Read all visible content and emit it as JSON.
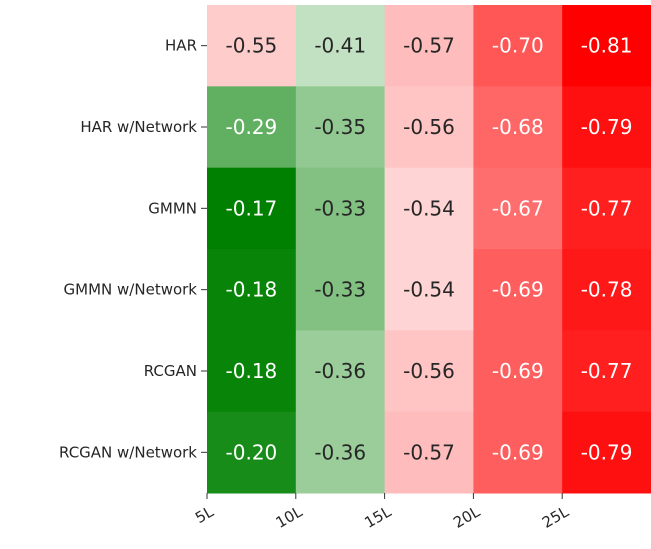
{
  "chart_data": {
    "type": "heatmap",
    "title": "",
    "xlabel": "",
    "ylabel": "",
    "rows": [
      "HAR",
      "HAR w/Network",
      "GMMN",
      "GMMN w/Network",
      "RCGAN",
      "RCGAN w/Network"
    ],
    "columns": [
      "5L",
      "10L",
      "15L",
      "20L",
      "25L"
    ],
    "values": [
      [
        -0.55,
        -0.41,
        -0.57,
        -0.7,
        -0.81
      ],
      [
        -0.29,
        -0.35,
        -0.56,
        -0.68,
        -0.79
      ],
      [
        -0.17,
        -0.33,
        -0.54,
        -0.67,
        -0.77
      ],
      [
        -0.18,
        -0.33,
        -0.54,
        -0.69,
        -0.78
      ],
      [
        -0.18,
        -0.36,
        -0.56,
        -0.69,
        -0.77
      ],
      [
        -0.2,
        -0.36,
        -0.57,
        -0.69,
        -0.79
      ]
    ],
    "value_labels": [
      [
        "-0.55",
        "-0.41",
        "-0.57",
        "-0.70",
        "-0.81"
      ],
      [
        "-0.29",
        "-0.35",
        "-0.56",
        "-0.68",
        "-0.79"
      ],
      [
        "-0.17",
        "-0.33",
        "-0.54",
        "-0.67",
        "-0.77"
      ],
      [
        "-0.18",
        "-0.33",
        "-0.54",
        "-0.69",
        "-0.78"
      ],
      [
        "-0.18",
        "-0.36",
        "-0.56",
        "-0.69",
        "-0.77"
      ],
      [
        "-0.20",
        "-0.36",
        "-0.57",
        "-0.69",
        "-0.79"
      ]
    ],
    "colormap": {
      "low_color": "#008000",
      "mid_color": "#ffffff",
      "high_color": "#ff0000",
      "low_value": -0.17,
      "mid_value": -0.485,
      "high_value": -0.81
    },
    "grid": false,
    "legend": "none",
    "colorbar": false
  }
}
